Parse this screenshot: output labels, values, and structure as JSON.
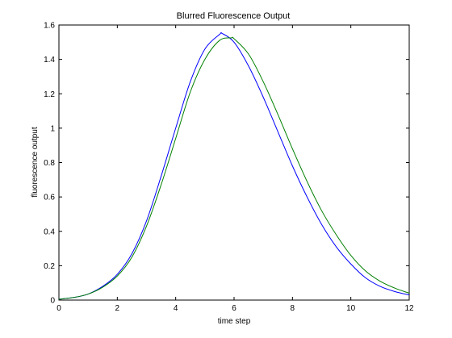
{
  "chart_data": {
    "type": "line",
    "title": "Blurred Fluorescence Output",
    "xlabel": "time step",
    "ylabel": "fluorescence output",
    "xlim": [
      0,
      12
    ],
    "ylim": [
      0,
      1.6
    ],
    "xticks": [
      0,
      2,
      4,
      6,
      8,
      10,
      12
    ],
    "xtick_labels": [
      "0",
      "2",
      "4",
      "6",
      "8",
      "10",
      "12"
    ],
    "yticks": [
      0,
      0.2,
      0.4,
      0.6,
      0.8,
      1,
      1.2,
      1.4,
      1.6
    ],
    "ytick_labels": [
      "0",
      "0.2",
      "0.4",
      "0.6",
      "0.8",
      "1",
      "1.2",
      "1.4",
      "1.6"
    ],
    "grid": false,
    "legend": "none",
    "series": [
      {
        "color": "#0000ff",
        "x": [
          0,
          0.5,
          1,
          1.5,
          2,
          2.5,
          3,
          3.5,
          4,
          4.5,
          5,
          5.5,
          5.6,
          6,
          6.5,
          7,
          7.5,
          8,
          8.5,
          9,
          9.5,
          10,
          10.5,
          11,
          11.5,
          12
        ],
        "y": [
          0.005,
          0.015,
          0.035,
          0.08,
          0.15,
          0.27,
          0.46,
          0.72,
          1.0,
          1.27,
          1.46,
          1.545,
          1.55,
          1.5,
          1.36,
          1.18,
          0.98,
          0.78,
          0.6,
          0.44,
          0.31,
          0.21,
          0.13,
          0.08,
          0.05,
          0.03
        ]
      },
      {
        "color": "#008000",
        "x": [
          0,
          0.5,
          1,
          1.5,
          2,
          2.5,
          3,
          3.5,
          4,
          4.5,
          5,
          5.5,
          5.9,
          6,
          6.5,
          7,
          7.5,
          8,
          8.5,
          9,
          9.5,
          10,
          10.5,
          11,
          11.5,
          12
        ],
        "y": [
          0.005,
          0.015,
          0.035,
          0.075,
          0.14,
          0.25,
          0.43,
          0.67,
          0.94,
          1.21,
          1.4,
          1.51,
          1.525,
          1.52,
          1.43,
          1.27,
          1.08,
          0.88,
          0.69,
          0.52,
          0.38,
          0.26,
          0.17,
          0.11,
          0.07,
          0.04
        ]
      }
    ]
  }
}
